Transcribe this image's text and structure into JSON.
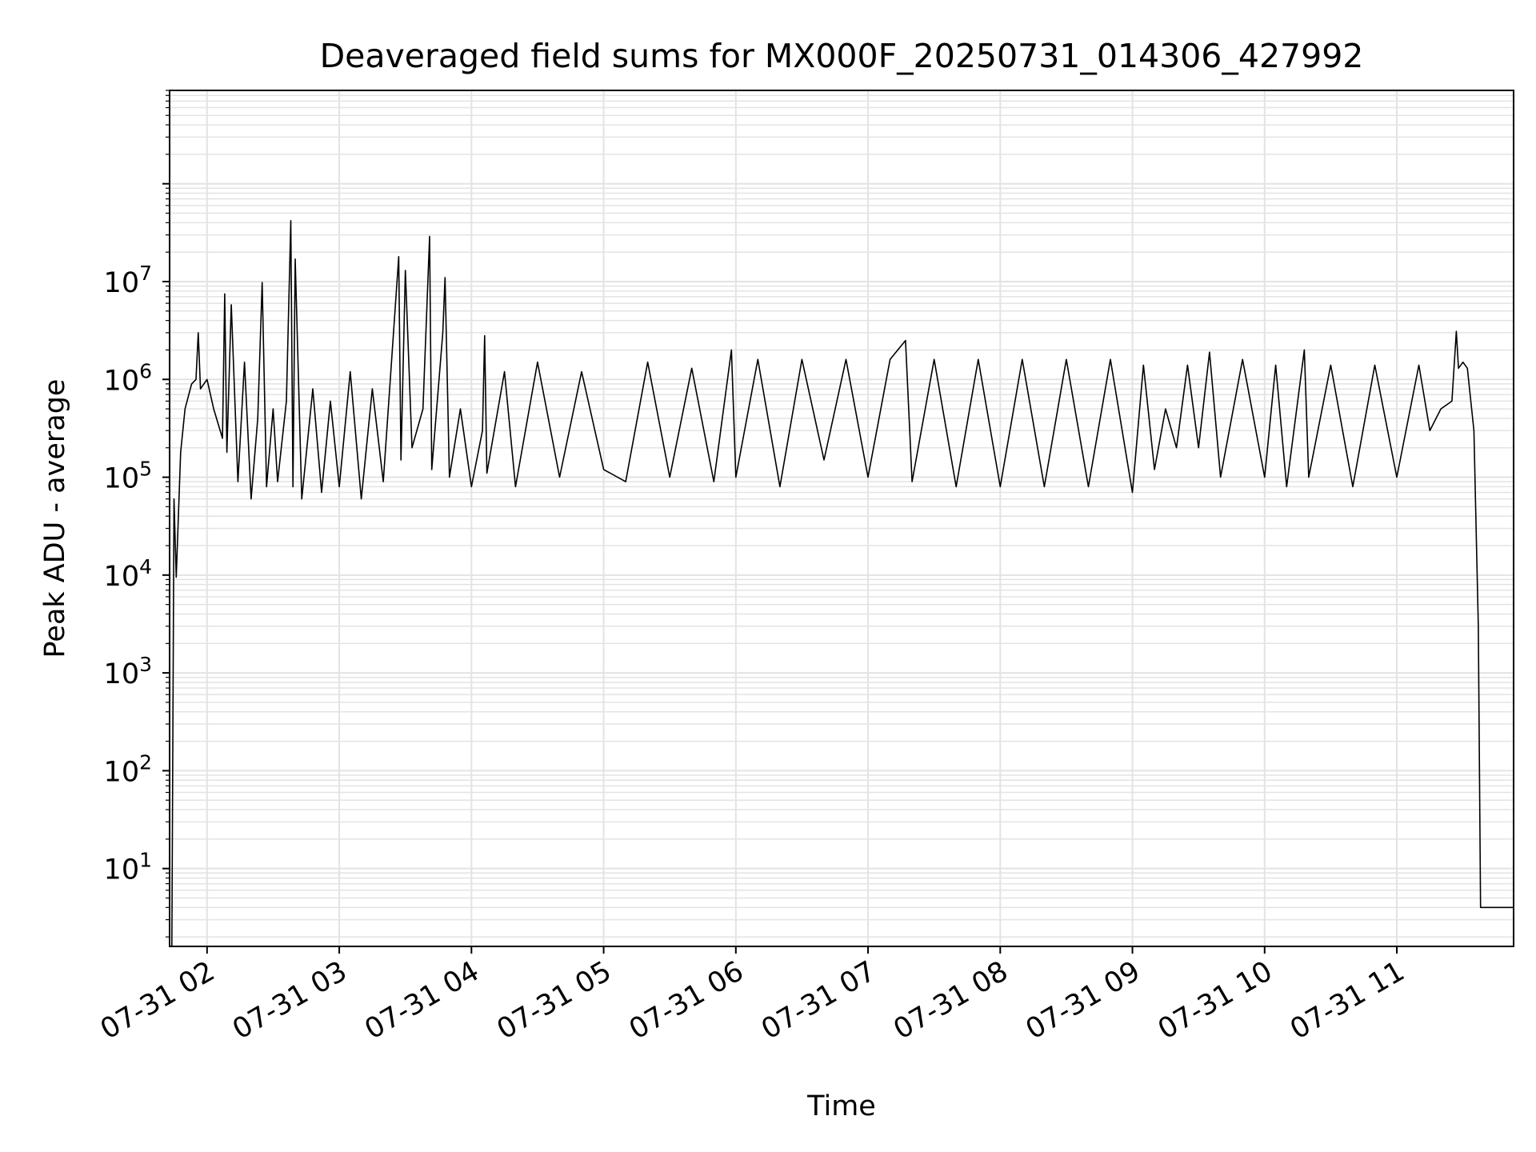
{
  "chart_data": {
    "type": "line",
    "title": "Deaveraged field sums for MX000F_20250731_014306_427992",
    "xlabel": "Time",
    "ylabel": "Peak ADU - average",
    "x_ticks": [
      "07-31 02",
      "07-31 03",
      "07-31 04",
      "07-31 05",
      "07-31 06",
      "07-31 07",
      "07-31 08",
      "07-31 09",
      "07-31 10",
      "07-31 11"
    ],
    "x_tick_hours": [
      2,
      3,
      4,
      5,
      6,
      7,
      8,
      9,
      10,
      11
    ],
    "xlim": [
      "07-31 01:43",
      "07-31 11:53"
    ],
    "y_scale": "log",
    "ylim": [
      1.6,
      900000000
    ],
    "y_ticks": [
      {
        "base": "10",
        "exp": "1",
        "value": 10
      },
      {
        "base": "10",
        "exp": "2",
        "value": 100
      },
      {
        "base": "10",
        "exp": "3",
        "value": 1000
      },
      {
        "base": "10",
        "exp": "4",
        "value": 10000
      },
      {
        "base": "10",
        "exp": "5",
        "value": 100000
      },
      {
        "base": "10",
        "exp": "6",
        "value": 1000000
      },
      {
        "base": "10",
        "exp": "7",
        "value": 10000000
      }
    ],
    "grid": true,
    "series": [
      {
        "color": "#000000",
        "points": [
          [
            "07-31 01:43",
            1.6
          ],
          [
            "07-31 01:44",
            1.6
          ],
          [
            "07-31 01:45",
            60000
          ],
          [
            "07-31 01:46",
            9500
          ],
          [
            "07-31 01:48",
            180000
          ],
          [
            "07-31 01:50",
            500000
          ],
          [
            "07-31 01:53",
            900000
          ],
          [
            "07-31 01:55",
            1000000
          ],
          [
            "07-31 01:56",
            3000000
          ],
          [
            "07-31 01:57",
            800000
          ],
          [
            "07-31 02:00",
            1000000
          ],
          [
            "07-31 02:03",
            500000
          ],
          [
            "07-31 02:07",
            250000
          ],
          [
            "07-31 02:08",
            7500000
          ],
          [
            "07-31 02:09",
            180000
          ],
          [
            "07-31 02:11",
            5800000
          ],
          [
            "07-31 02:14",
            90000
          ],
          [
            "07-31 02:17",
            1500000
          ],
          [
            "07-31 02:20",
            60000
          ],
          [
            "07-31 02:23",
            400000
          ],
          [
            "07-31 02:25",
            9800000
          ],
          [
            "07-31 02:27",
            80000
          ],
          [
            "07-31 02:30",
            500000
          ],
          [
            "07-31 02:32",
            90000
          ],
          [
            "07-31 02:36",
            600000
          ],
          [
            "07-31 02:38",
            42000000
          ],
          [
            "07-31 02:39",
            80000
          ],
          [
            "07-31 02:40",
            17000000
          ],
          [
            "07-31 02:43",
            60000
          ],
          [
            "07-31 02:48",
            800000
          ],
          [
            "07-31 02:52",
            70000
          ],
          [
            "07-31 02:56",
            600000
          ],
          [
            "07-31 03:00",
            80000
          ],
          [
            "07-31 03:05",
            1200000
          ],
          [
            "07-31 03:10",
            60000
          ],
          [
            "07-31 03:15",
            800000
          ],
          [
            "07-31 03:20",
            90000
          ],
          [
            "07-31 03:27",
            18000000
          ],
          [
            "07-31 03:28",
            150000
          ],
          [
            "07-31 03:30",
            13000000
          ],
          [
            "07-31 03:33",
            200000
          ],
          [
            "07-31 03:38",
            500000
          ],
          [
            "07-31 03:41",
            29000000
          ],
          [
            "07-31 03:42",
            120000
          ],
          [
            "07-31 03:47",
            3000000
          ],
          [
            "07-31 03:48",
            11000000
          ],
          [
            "07-31 03:50",
            100000
          ],
          [
            "07-31 03:55",
            500000
          ],
          [
            "07-31 04:00",
            80000
          ],
          [
            "07-31 04:05",
            300000
          ],
          [
            "07-31 04:06",
            2800000
          ],
          [
            "07-31 04:07",
            110000
          ],
          [
            "07-31 04:15",
            1200000
          ],
          [
            "07-31 04:20",
            80000
          ],
          [
            "07-31 04:30",
            1500000
          ],
          [
            "07-31 04:40",
            100000
          ],
          [
            "07-31 04:50",
            1200000
          ],
          [
            "07-31 05:00",
            120000
          ],
          [
            "07-31 05:10",
            90000
          ],
          [
            "07-31 05:20",
            1500000
          ],
          [
            "07-31 05:30",
            100000
          ],
          [
            "07-31 05:40",
            1300000
          ],
          [
            "07-31 05:50",
            90000
          ],
          [
            "07-31 05:58",
            2000000
          ],
          [
            "07-31 06:00",
            100000
          ],
          [
            "07-31 06:10",
            1600000
          ],
          [
            "07-31 06:20",
            80000
          ],
          [
            "07-31 06:30",
            1600000
          ],
          [
            "07-31 06:40",
            150000
          ],
          [
            "07-31 06:50",
            1600000
          ],
          [
            "07-31 07:00",
            100000
          ],
          [
            "07-31 07:10",
            1600000
          ],
          [
            "07-31 07:17",
            2500000
          ],
          [
            "07-31 07:20",
            90000
          ],
          [
            "07-31 07:30",
            1600000
          ],
          [
            "07-31 07:40",
            80000
          ],
          [
            "07-31 07:50",
            1600000
          ],
          [
            "07-31 08:00",
            80000
          ],
          [
            "07-31 08:10",
            1600000
          ],
          [
            "07-31 08:20",
            80000
          ],
          [
            "07-31 08:30",
            1600000
          ],
          [
            "07-31 08:40",
            80000
          ],
          [
            "07-31 08:50",
            1600000
          ],
          [
            "07-31 09:00",
            70000
          ],
          [
            "07-31 09:05",
            1400000
          ],
          [
            "07-31 09:10",
            120000
          ],
          [
            "07-31 09:15",
            500000
          ],
          [
            "07-31 09:20",
            200000
          ],
          [
            "07-31 09:25",
            1400000
          ],
          [
            "07-31 09:30",
            200000
          ],
          [
            "07-31 09:35",
            1900000
          ],
          [
            "07-31 09:40",
            100000
          ],
          [
            "07-31 09:50",
            1600000
          ],
          [
            "07-31 10:00",
            100000
          ],
          [
            "07-31 10:05",
            1400000
          ],
          [
            "07-31 10:10",
            80000
          ],
          [
            "07-31 10:18",
            2000000
          ],
          [
            "07-31 10:20",
            100000
          ],
          [
            "07-31 10:30",
            1400000
          ],
          [
            "07-31 10:40",
            80000
          ],
          [
            "07-31 10:50",
            1400000
          ],
          [
            "07-31 11:00",
            100000
          ],
          [
            "07-31 11:10",
            1400000
          ],
          [
            "07-31 11:15",
            300000
          ],
          [
            "07-31 11:20",
            500000
          ],
          [
            "07-31 11:25",
            600000
          ],
          [
            "07-31 11:27",
            3100000
          ],
          [
            "07-31 11:28",
            1300000
          ],
          [
            "07-31 11:30",
            1500000
          ],
          [
            "07-31 11:32",
            1300000
          ],
          [
            "07-31 11:35",
            300000
          ],
          [
            "07-31 11:37",
            3000
          ],
          [
            "07-31 11:38",
            4
          ],
          [
            "07-31 11:53",
            4
          ]
        ]
      }
    ]
  }
}
